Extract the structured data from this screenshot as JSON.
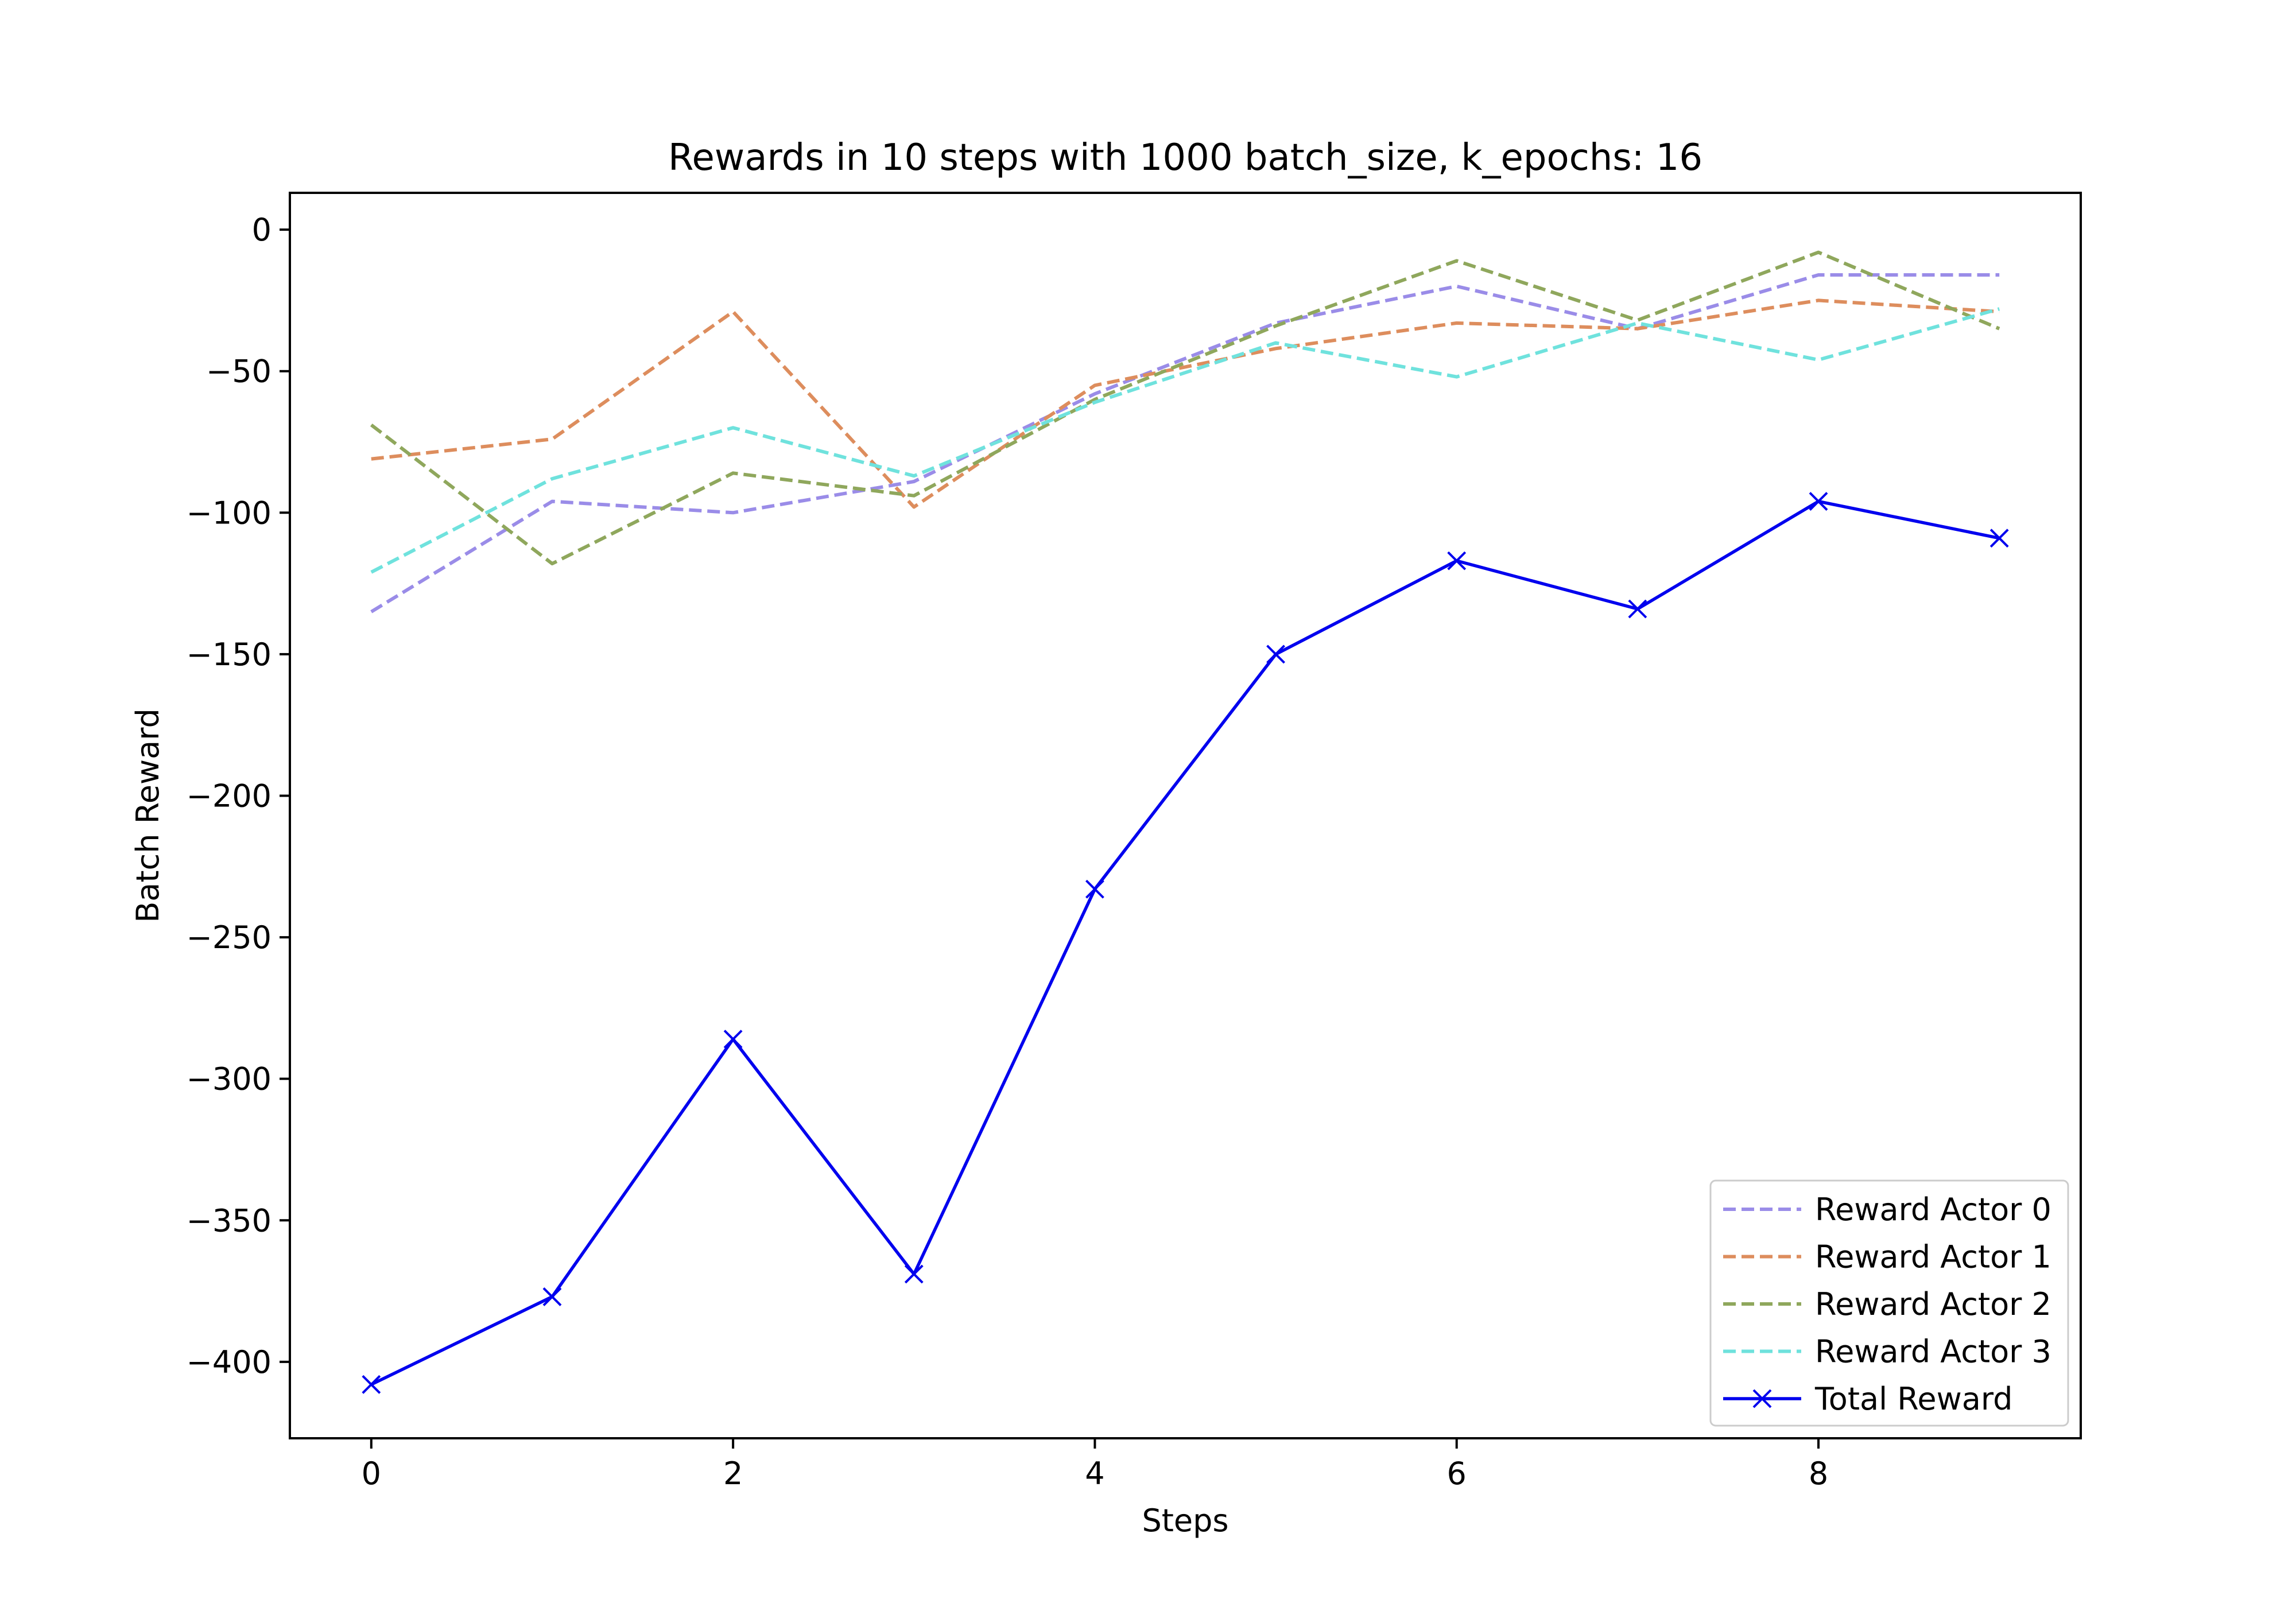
{
  "chart_data": {
    "type": "line",
    "title": "Rewards in 10 steps with 1000 batch_size, k_epochs: 16",
    "xlabel": "Steps",
    "ylabel": "Batch Reward",
    "xlim": [
      -0.45,
      9.45
    ],
    "ylim": [
      -427,
      13
    ],
    "xticks": [
      0,
      2,
      4,
      6,
      8
    ],
    "yticks": [
      0,
      -50,
      -100,
      -150,
      -200,
      -250,
      -300,
      -350,
      -400
    ],
    "xtick_labels": [
      "0",
      "2",
      "4",
      "6",
      "8"
    ],
    "ytick_labels": [
      "0",
      "−50",
      "−100",
      "−150",
      "−200",
      "−250",
      "−300",
      "−350",
      "−400"
    ],
    "grid": false,
    "legend_position": "lower-right",
    "x": [
      0,
      1,
      2,
      3,
      4,
      5,
      6,
      7,
      8,
      9
    ],
    "series": [
      {
        "name": "Reward Actor 0",
        "color": "#9a8ce8",
        "style": "dashed",
        "marker": "none",
        "values": [
          -135,
          -96,
          -100,
          -89,
          -58,
          -33,
          -20,
          -35,
          -16,
          -16
        ]
      },
      {
        "name": "Reward Actor 1",
        "color": "#dd8d5d",
        "style": "dashed",
        "marker": "none",
        "values": [
          -81,
          -74,
          -29,
          -98,
          -55,
          -42,
          -33,
          -35,
          -25,
          -29
        ]
      },
      {
        "name": "Reward Actor 2",
        "color": "#8fa75c",
        "style": "dashed",
        "marker": "none",
        "values": [
          -69,
          -118,
          -86,
          -94,
          -60,
          -34,
          -11,
          -32,
          -8,
          -35
        ]
      },
      {
        "name": "Reward Actor 3",
        "color": "#6fe2dd",
        "style": "dashed",
        "marker": "none",
        "values": [
          -121,
          -88,
          -70,
          -87,
          -61,
          -40,
          -52,
          -33,
          -46,
          -28
        ]
      },
      {
        "name": "Total Reward",
        "color": "#0000ee",
        "style": "solid",
        "marker": "x",
        "values": [
          -408,
          -377,
          -286,
          -369,
          -233,
          -150,
          -117,
          -134,
          -96,
          -109
        ]
      }
    ]
  }
}
